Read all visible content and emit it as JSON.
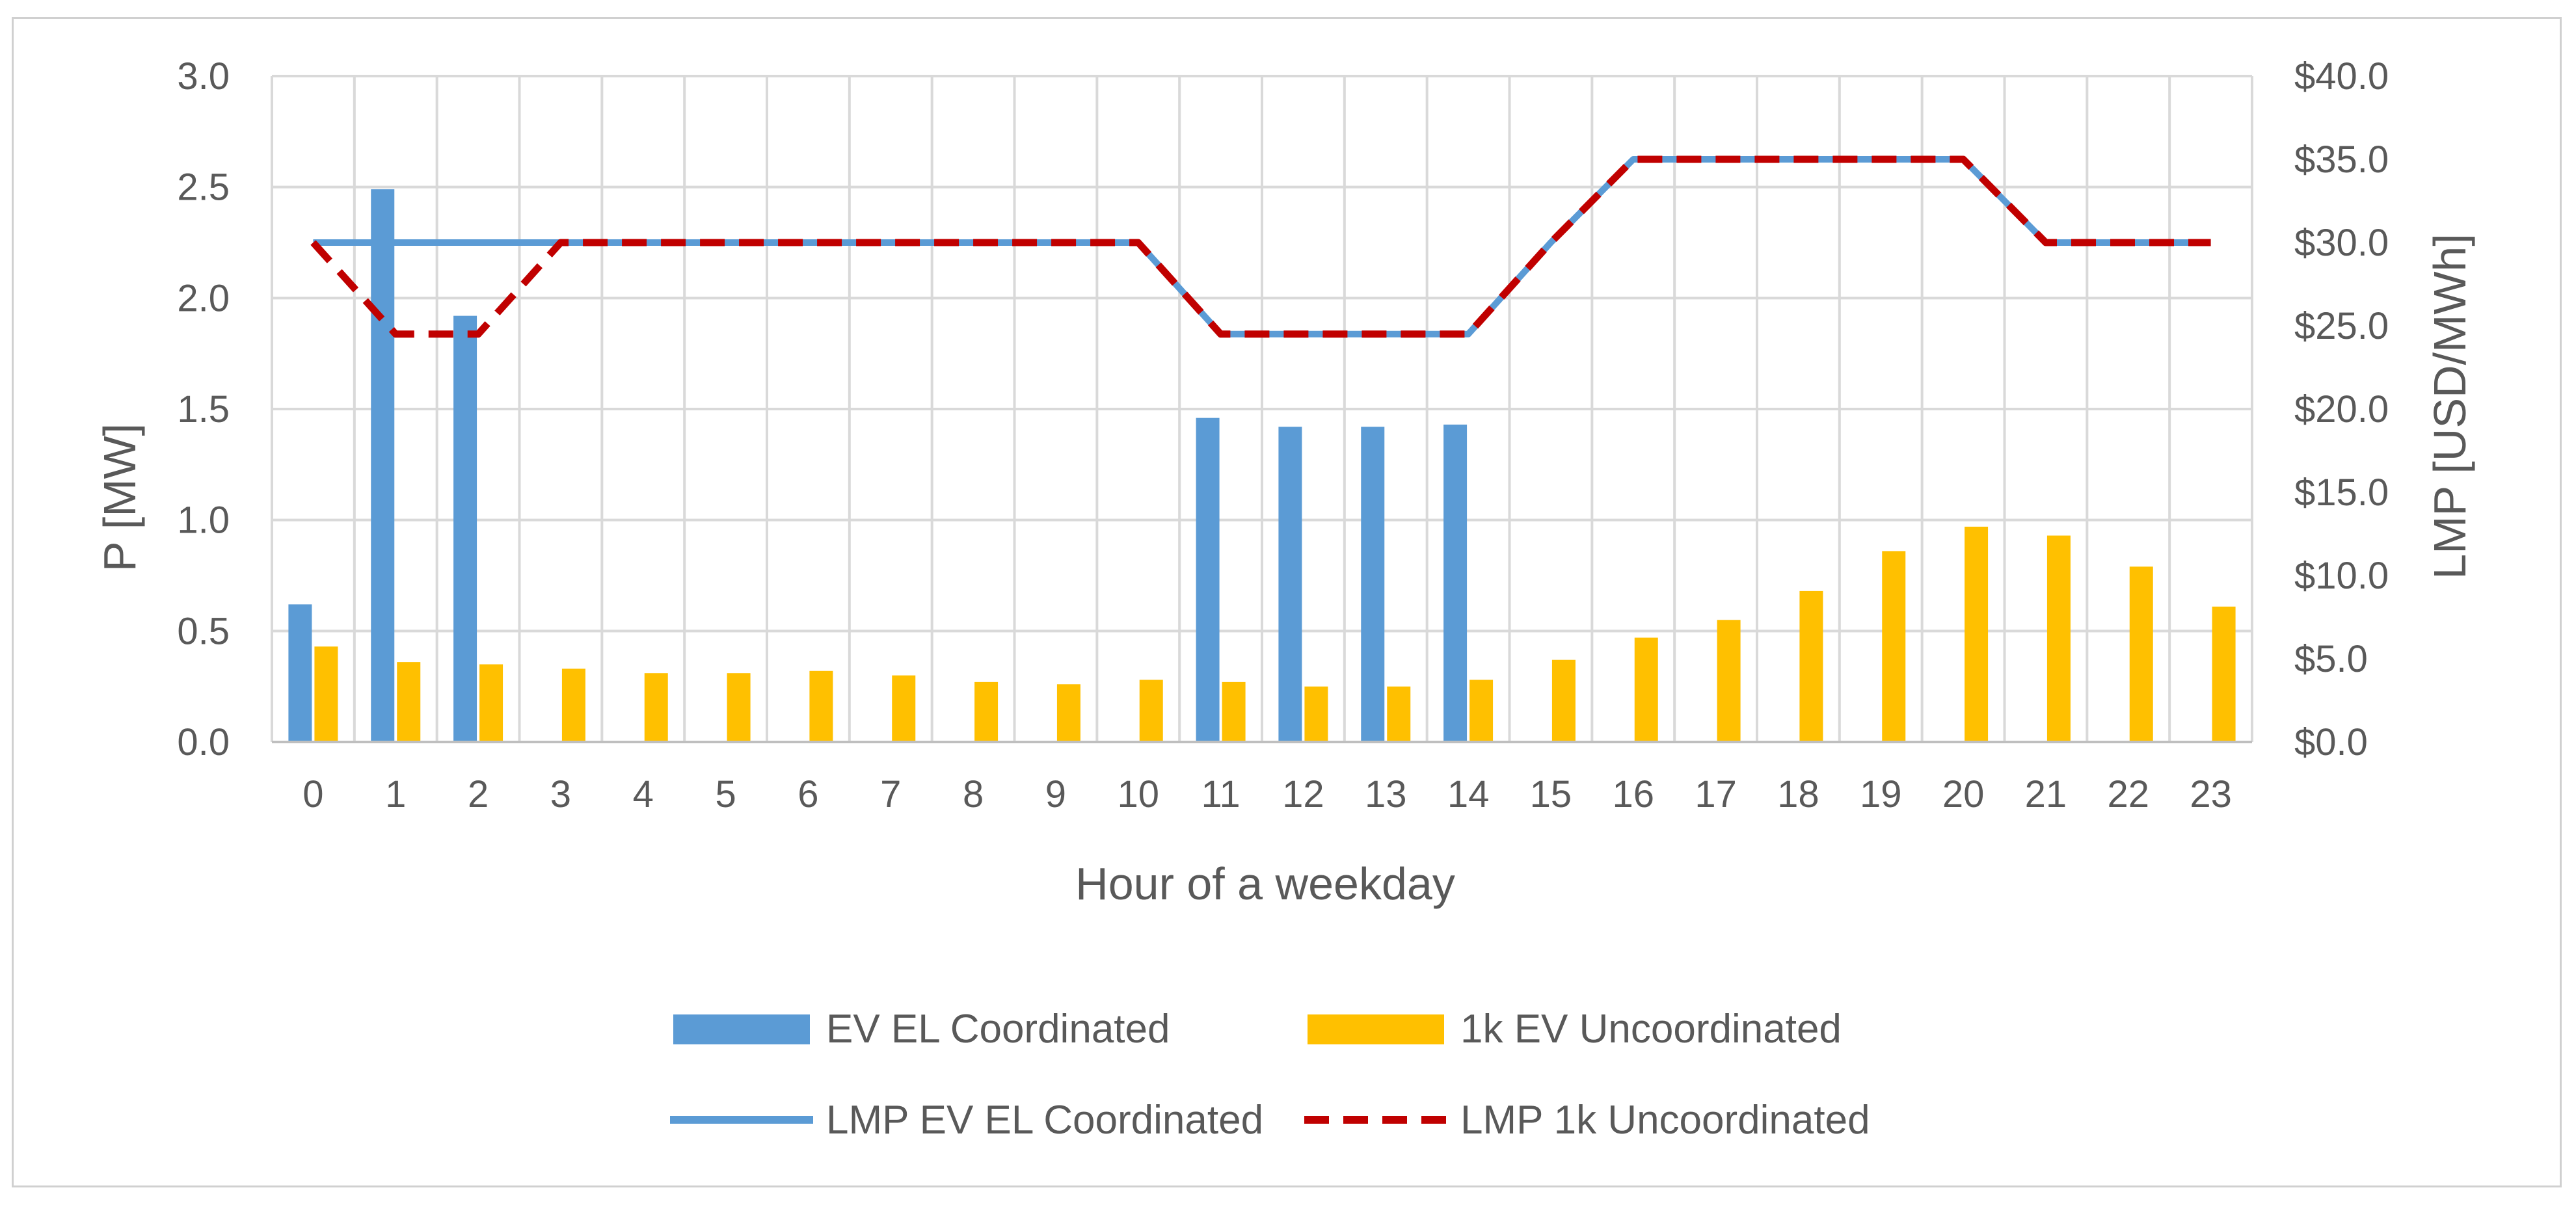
{
  "chart_data": {
    "type": "bar",
    "title": "",
    "xlabel": "Hour of a weekday",
    "ylabel": "P [MW]",
    "y2label": "LMP [USD/MWh]",
    "ylim": [
      0,
      3.0
    ],
    "y2lim": [
      0,
      40
    ],
    "yticks": [
      "0.0",
      "0.5",
      "1.0",
      "1.5",
      "2.0",
      "2.5",
      "3.0"
    ],
    "y2ticks": [
      "$0.0",
      "$5.0",
      "$10.0",
      "$15.0",
      "$20.0",
      "$25.0",
      "$30.0",
      "$35.0",
      "$40.0"
    ],
    "categories": [
      "0",
      "1",
      "2",
      "3",
      "4",
      "5",
      "6",
      "7",
      "8",
      "9",
      "10",
      "11",
      "12",
      "13",
      "14",
      "15",
      "16",
      "17",
      "18",
      "19",
      "20",
      "21",
      "22",
      "23"
    ],
    "grid": true,
    "legend_position": "bottom",
    "series": [
      {
        "name": "EV EL Coordinated",
        "kind": "bar",
        "axis": "left",
        "color": "#5B9BD5",
        "values": [
          0.62,
          2.49,
          1.92,
          0,
          0,
          0,
          0,
          0,
          0,
          0,
          0,
          1.46,
          1.42,
          1.42,
          1.43,
          0,
          0,
          0,
          0,
          0,
          0,
          0,
          0,
          0
        ]
      },
      {
        "name": "1k EV Uncoordinated",
        "kind": "bar",
        "axis": "left",
        "color": "#FFC000",
        "values": [
          0.43,
          0.36,
          0.35,
          0.33,
          0.31,
          0.31,
          0.32,
          0.3,
          0.27,
          0.26,
          0.28,
          0.27,
          0.25,
          0.25,
          0.28,
          0.37,
          0.47,
          0.55,
          0.68,
          0.86,
          0.97,
          0.93,
          0.79,
          0.61
        ]
      },
      {
        "name": "LMP EV EL Coordinated",
        "kind": "line",
        "axis": "right",
        "color": "#5B9BD5",
        "values": [
          30,
          30,
          30,
          30,
          30,
          30,
          30,
          30,
          30,
          30,
          30,
          24.5,
          24.5,
          24.5,
          24.5,
          30,
          35,
          35,
          35,
          35,
          35,
          30,
          30,
          30
        ]
      },
      {
        "name": "LMP 1k Uncoordinated",
        "kind": "line",
        "dashed": true,
        "axis": "right",
        "color": "#C00000",
        "values": [
          30,
          24.5,
          24.5,
          30,
          30,
          30,
          30,
          30,
          30,
          30,
          30,
          24.5,
          24.5,
          24.5,
          24.5,
          30,
          35,
          35,
          35,
          35,
          35,
          30,
          30,
          30
        ]
      }
    ]
  }
}
